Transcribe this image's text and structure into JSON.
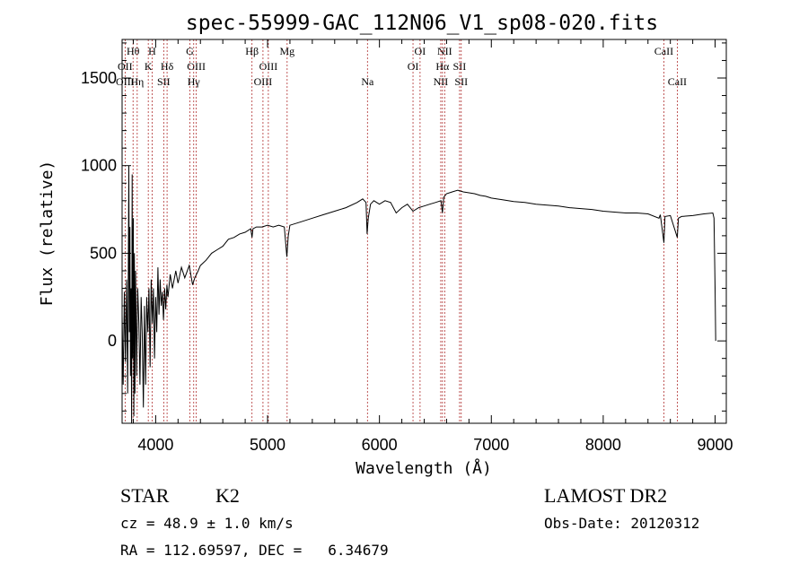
{
  "chart_data": {
    "type": "line",
    "title": "spec-55999-GAC_112N06_V1_sp08-020.fits",
    "xlabel": "Wavelength (Å)",
    "ylabel": "Flux (relative)",
    "xlim": [
      3700,
      9100
    ],
    "ylim": [
      -470,
      1720
    ],
    "x_ticks": [
      4000,
      5000,
      6000,
      7000,
      8000,
      9000
    ],
    "y_ticks": [
      0,
      500,
      1000,
      1500
    ],
    "grid": false,
    "legend": "none",
    "series": [
      {
        "color": "#000000",
        "points": [
          [
            3700,
            150
          ],
          [
            3710,
            -250
          ],
          [
            3720,
            280
          ],
          [
            3730,
            -120
          ],
          [
            3740,
            350
          ],
          [
            3750,
            -300
          ],
          [
            3760,
            1000
          ],
          [
            3765,
            50
          ],
          [
            3770,
            650
          ],
          [
            3775,
            -200
          ],
          [
            3780,
            300
          ],
          [
            3785,
            -470
          ],
          [
            3790,
            950
          ],
          [
            3795,
            -100
          ],
          [
            3800,
            700
          ],
          [
            3805,
            -430
          ],
          [
            3810,
            500
          ],
          [
            3815,
            -300
          ],
          [
            3820,
            400
          ],
          [
            3830,
            -200
          ],
          [
            3840,
            300
          ],
          [
            3850,
            100
          ],
          [
            3860,
            -250
          ],
          [
            3870,
            250
          ],
          [
            3880,
            50
          ],
          [
            3890,
            -380
          ],
          [
            3900,
            200
          ],
          [
            3910,
            -250
          ],
          [
            3920,
            250
          ],
          [
            3930,
            50
          ],
          [
            3940,
            300
          ],
          [
            3950,
            -150
          ],
          [
            3960,
            350
          ],
          [
            3970,
            100
          ],
          [
            3980,
            300
          ],
          [
            3990,
            -100
          ],
          [
            4000,
            250
          ],
          [
            4010,
            50
          ],
          [
            4020,
            420
          ],
          [
            4030,
            150
          ],
          [
            4040,
            350
          ],
          [
            4050,
            200
          ],
          [
            4060,
            280
          ],
          [
            4070,
            120
          ],
          [
            4080,
            300
          ],
          [
            4090,
            180
          ],
          [
            4100,
            320
          ],
          [
            4110,
            250
          ],
          [
            4130,
            380
          ],
          [
            4150,
            300
          ],
          [
            4180,
            400
          ],
          [
            4200,
            330
          ],
          [
            4230,
            420
          ],
          [
            4260,
            360
          ],
          [
            4300,
            430
          ],
          [
            4330,
            320
          ],
          [
            4350,
            360
          ],
          [
            4380,
            400
          ],
          [
            4400,
            430
          ],
          [
            4450,
            460
          ],
          [
            4500,
            500
          ],
          [
            4550,
            520
          ],
          [
            4600,
            540
          ],
          [
            4650,
            580
          ],
          [
            4700,
            590
          ],
          [
            4750,
            610
          ],
          [
            4800,
            620
          ],
          [
            4850,
            640
          ],
          [
            4861,
            590
          ],
          [
            4870,
            640
          ],
          [
            4900,
            650
          ],
          [
            4950,
            650
          ],
          [
            5000,
            660
          ],
          [
            5050,
            650
          ],
          [
            5100,
            660
          ],
          [
            5150,
            650
          ],
          [
            5172,
            480
          ],
          [
            5185,
            600
          ],
          [
            5200,
            660
          ],
          [
            5300,
            680
          ],
          [
            5400,
            700
          ],
          [
            5500,
            720
          ],
          [
            5600,
            740
          ],
          [
            5700,
            760
          ],
          [
            5800,
            790
          ],
          [
            5850,
            810
          ],
          [
            5880,
            790
          ],
          [
            5890,
            610
          ],
          [
            5900,
            700
          ],
          [
            5920,
            780
          ],
          [
            5950,
            800
          ],
          [
            6000,
            780
          ],
          [
            6050,
            800
          ],
          [
            6100,
            790
          ],
          [
            6150,
            730
          ],
          [
            6200,
            760
          ],
          [
            6250,
            780
          ],
          [
            6300,
            740
          ],
          [
            6350,
            760
          ],
          [
            6400,
            770
          ],
          [
            6450,
            780
          ],
          [
            6500,
            790
          ],
          [
            6550,
            800
          ],
          [
            6563,
            730
          ],
          [
            6575,
            820
          ],
          [
            6600,
            840
          ],
          [
            6650,
            850
          ],
          [
            6700,
            860
          ],
          [
            6750,
            850
          ],
          [
            6800,
            845
          ],
          [
            6850,
            840
          ],
          [
            6900,
            830
          ],
          [
            6950,
            825
          ],
          [
            7000,
            815
          ],
          [
            7100,
            805
          ],
          [
            7200,
            795
          ],
          [
            7300,
            790
          ],
          [
            7400,
            780
          ],
          [
            7500,
            775
          ],
          [
            7600,
            770
          ],
          [
            7700,
            760
          ],
          [
            7800,
            755
          ],
          [
            7900,
            750
          ],
          [
            8000,
            740
          ],
          [
            8100,
            735
          ],
          [
            8200,
            730
          ],
          [
            8300,
            730
          ],
          [
            8400,
            725
          ],
          [
            8498,
            700
          ],
          [
            8510,
            720
          ],
          [
            8542,
            560
          ],
          [
            8552,
            710
          ],
          [
            8600,
            715
          ],
          [
            8662,
            590
          ],
          [
            8672,
            700
          ],
          [
            8700,
            710
          ],
          [
            8800,
            715
          ],
          [
            8900,
            725
          ],
          [
            8980,
            730
          ],
          [
            8990,
            700
          ],
          [
            9000,
            300
          ],
          [
            9005,
            0
          ]
        ]
      }
    ],
    "line_markers": [
      {
        "label": "Hθ",
        "wavelength": 3798,
        "row": 1
      },
      {
        "label": "OII",
        "wavelength": 3727,
        "row": 2
      },
      {
        "label": "OIII",
        "wavelength": 3727,
        "row": 3
      },
      {
        "label": "Hη",
        "wavelength": 3835,
        "row": 3
      },
      {
        "label": "H",
        "wavelength": 3968,
        "row": 1
      },
      {
        "label": "K",
        "wavelength": 3934,
        "row": 2
      },
      {
        "label": "Hδ",
        "wavelength": 4102,
        "row": 2
      },
      {
        "label": "SII",
        "wavelength": 4072,
        "row": 3
      },
      {
        "label": "G",
        "wavelength": 4305,
        "row": 1
      },
      {
        "label": "OIII",
        "wavelength": 4363,
        "row": 2
      },
      {
        "label": "Hγ",
        "wavelength": 4340,
        "row": 3
      },
      {
        "label": "Hβ",
        "wavelength": 4861,
        "row": 1
      },
      {
        "label": "OIII",
        "wavelength": 5007,
        "row": 2
      },
      {
        "label": "OIII",
        "wavelength": 4959,
        "row": 3
      },
      {
        "label": "Mg",
        "wavelength": 5175,
        "row": 1
      },
      {
        "label": "Na",
        "wavelength": 5893,
        "row": 3
      },
      {
        "label": "OI",
        "wavelength": 6363,
        "row": 1
      },
      {
        "label": "OI",
        "wavelength": 6300,
        "row": 2
      },
      {
        "label": "NII",
        "wavelength": 6583,
        "row": 1
      },
      {
        "label": "Hα",
        "wavelength": 6563,
        "row": 2
      },
      {
        "label": "SII",
        "wavelength": 6716,
        "row": 2
      },
      {
        "label": "NII",
        "wavelength": 6548,
        "row": 3
      },
      {
        "label": "SII",
        "wavelength": 6731,
        "row": 3
      },
      {
        "label": "CaII",
        "wavelength": 8542,
        "row": 1
      },
      {
        "label": "CaII",
        "wavelength": 8662,
        "row": 3
      }
    ]
  },
  "info": {
    "object_class": "STAR",
    "subclass": "K2",
    "survey": "LAMOST DR2",
    "redshift": "cz = 48.9 ± 1.0 km/s",
    "obs_date": "Obs-Date: 20120312",
    "coords": "RA = 112.69597, DEC =   6.34679"
  }
}
